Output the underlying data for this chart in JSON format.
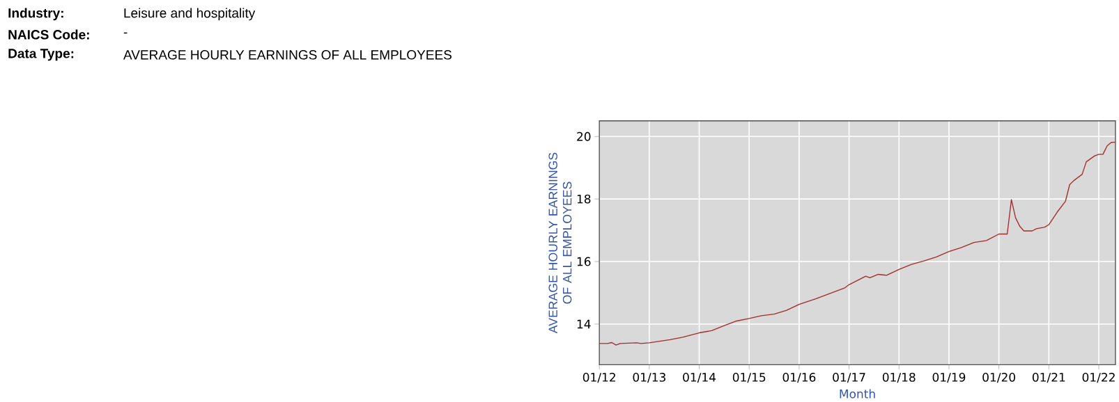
{
  "chart_data": {
    "type": "line",
    "annotations": [
      "Industry:",
      "Leisure and hospitality",
      "NAICS Code:",
      "-",
      "Data Type:",
      "AVERAGE HOURLY EARNINGS OF ALL EMPLOYEES"
    ],
    "xlabel": "Month",
    "ylabel": "AVERAGE HOURLY EARNINGS OF ALL EMPLOYEES",
    "x": [
      "2012-01",
      "2012-03",
      "2012-04",
      "2012-05",
      "2012-06",
      "2012-10",
      "2012-11",
      "2013-01",
      "2013-06",
      "2013-09",
      "2014-01",
      "2014-04",
      "2014-07",
      "2014-10",
      "2015-01",
      "2015-04",
      "2015-07",
      "2015-10",
      "2016-01",
      "2016-05",
      "2016-09",
      "2016-12",
      "2017-01",
      "2017-05",
      "2017-06",
      "2017-08",
      "2017-10",
      "2018-01",
      "2018-04",
      "2018-07",
      "2018-10",
      "2019-01",
      "2019-04",
      "2019-07",
      "2019-10",
      "2020-01",
      "2020-03",
      "2020-04",
      "2020-05",
      "2020-06",
      "2020-07",
      "2020-09",
      "2020-10",
      "2020-12",
      "2021-01",
      "2021-03",
      "2021-05",
      "2021-06",
      "2021-07",
      "2021-09",
      "2021-10",
      "2021-12",
      "2022-01",
      "2022-02",
      "2022-03",
      "2022-04",
      "2022-05"
    ],
    "series": [
      {
        "color": "#a52a2a",
        "values": [
          13.38,
          13.38,
          13.41,
          13.33,
          13.38,
          13.4,
          13.38,
          13.4,
          13.5,
          13.58,
          13.72,
          13.79,
          13.95,
          14.1,
          14.18,
          14.27,
          14.32,
          14.44,
          14.63,
          14.81,
          15.01,
          15.16,
          15.26,
          15.53,
          15.48,
          15.59,
          15.56,
          15.75,
          15.91,
          16.02,
          16.15,
          16.32,
          16.45,
          16.61,
          16.67,
          16.88,
          16.88,
          17.98,
          17.4,
          17.13,
          16.98,
          16.98,
          17.05,
          17.1,
          17.18,
          17.58,
          17.93,
          18.46,
          18.59,
          18.79,
          19.19,
          19.38,
          19.43,
          19.43,
          19.7,
          19.81,
          19.82
        ]
      }
    ],
    "xlim": [
      "2012-01",
      "2022-05"
    ],
    "xticks": [
      {
        "value": "2012-01",
        "label": "01/12"
      },
      {
        "value": "2013-01",
        "label": "01/13"
      },
      {
        "value": "2014-01",
        "label": "01/14"
      },
      {
        "value": "2015-01",
        "label": "01/15"
      },
      {
        "value": "2016-01",
        "label": "01/16"
      },
      {
        "value": "2017-01",
        "label": "01/17"
      },
      {
        "value": "2018-01",
        "label": "01/18"
      },
      {
        "value": "2019-01",
        "label": "01/19"
      },
      {
        "value": "2020-01",
        "label": "01/20"
      },
      {
        "value": "2021-01",
        "label": "01/21"
      },
      {
        "value": "2022-01",
        "label": "01/22"
      }
    ],
    "ylim": [
      12.7,
      20.5
    ],
    "yticks": [
      14,
      16,
      18,
      20
    ],
    "grid": true,
    "marker": "none",
    "line_style": "solid"
  }
}
